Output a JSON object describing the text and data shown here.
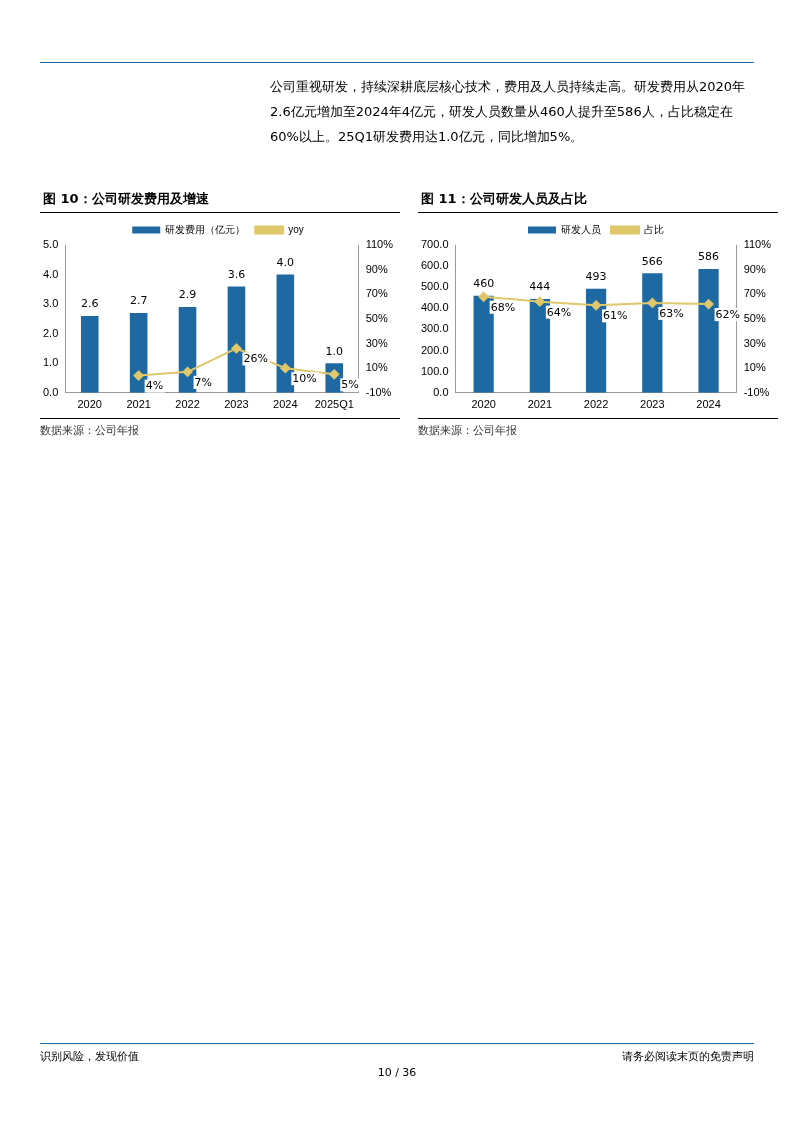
{
  "chart_data": [
    {
      "type": "bar",
      "title": "图 10：公司研发费用及增速",
      "categories": [
        "2020",
        "2021",
        "2022",
        "2023",
        "2024",
        "2025Q1"
      ],
      "series": [
        {
          "name": "研发费用（亿元）",
          "color": "#1f69a3",
          "values": [
            2.6,
            2.7,
            2.9,
            3.6,
            4.0,
            1.0
          ],
          "value_labels": [
            "2.6",
            "2.7",
            "2.9",
            "3.6",
            "4.0",
            "1.0"
          ]
        },
        {
          "name": "yoy",
          "type": "line",
          "axis": "y2",
          "color": "#e0c86a",
          "values": [
            null,
            4,
            7,
            26,
            10,
            5
          ],
          "value_labels": [
            null,
            "4%",
            "7%",
            "26%",
            "10%",
            "5%"
          ]
        }
      ],
      "ylim": [
        0,
        5
      ],
      "yticks": [
        {
          "value": 0,
          "label": "0.0"
        },
        {
          "value": 1,
          "label": "1.0"
        },
        {
          "value": 2,
          "label": "2.0"
        },
        {
          "value": 3,
          "label": "3.0"
        },
        {
          "value": 4,
          "label": "4.0"
        },
        {
          "value": 5,
          "label": "5.0"
        }
      ],
      "y2lim": [
        -10,
        110
      ],
      "y2ticks": [
        {
          "value": -10,
          "label": "-10%"
        },
        {
          "value": 10,
          "label": "10%"
        },
        {
          "value": 30,
          "label": "30%"
        },
        {
          "value": 50,
          "label": "50%"
        },
        {
          "value": 70,
          "label": "70%"
        },
        {
          "value": 90,
          "label": "90%"
        },
        {
          "value": 110,
          "label": "110%"
        }
      ],
      "grid": false,
      "legend": "top",
      "marker": "diamond",
      "line_style": "solid",
      "annotations": [
        "公司重视研发，持续深耕底层核心技术，费用及人员持续走高。研发费用从2020年2.6亿元增加至2024年4亿元，研发人员数量从460人提升至586人，占比稳定在60%以上。25Q1研发费用达1.0亿元，同比增加5%。",
        "数据来源：公司年报"
      ]
    },
    {
      "type": "bar",
      "title": "图 11：公司研发人员及占比",
      "categories": [
        "2020",
        "2021",
        "2022",
        "2023",
        "2024"
      ],
      "series": [
        {
          "name": "研发人员",
          "color": "#1f69a3",
          "values": [
            460,
            444,
            493,
            566,
            586
          ],
          "value_labels": [
            "460",
            "444",
            "493",
            "566",
            "586"
          ]
        },
        {
          "name": "占比",
          "type": "line",
          "axis": "y2",
          "color": "#e0c86a",
          "values": [
            68,
            64,
            61,
            63,
            62
          ],
          "value_labels": [
            "68%",
            "64%",
            "61%",
            "63%",
            "62%"
          ]
        }
      ],
      "ylim": [
        0,
        700
      ],
      "yticks": [
        {
          "value": 0,
          "label": "0.0"
        },
        {
          "value": 100,
          "label": "100.0"
        },
        {
          "value": 200,
          "label": "200.0"
        },
        {
          "value": 300,
          "label": "300.0"
        },
        {
          "value": 400,
          "label": "400.0"
        },
        {
          "value": 500,
          "label": "500.0"
        },
        {
          "value": 600,
          "label": "600.0"
        },
        {
          "value": 700,
          "label": "700.0"
        }
      ],
      "y2lim": [
        -10,
        110
      ],
      "y2ticks": [
        {
          "value": -10,
          "label": "-10%"
        },
        {
          "value": 10,
          "label": "10%"
        },
        {
          "value": 30,
          "label": "30%"
        },
        {
          "value": 50,
          "label": "50%"
        },
        {
          "value": 70,
          "label": "70%"
        },
        {
          "value": 90,
          "label": "90%"
        },
        {
          "value": 110,
          "label": "110%"
        }
      ],
      "grid": false,
      "legend": "top",
      "marker": "diamond",
      "line_style": "solid",
      "annotations": [
        "数据来源：公司年报",
        "识别风险，发现价值",
        "请务必阅读末页的免责声明",
        "10 / 36"
      ]
    }
  ]
}
